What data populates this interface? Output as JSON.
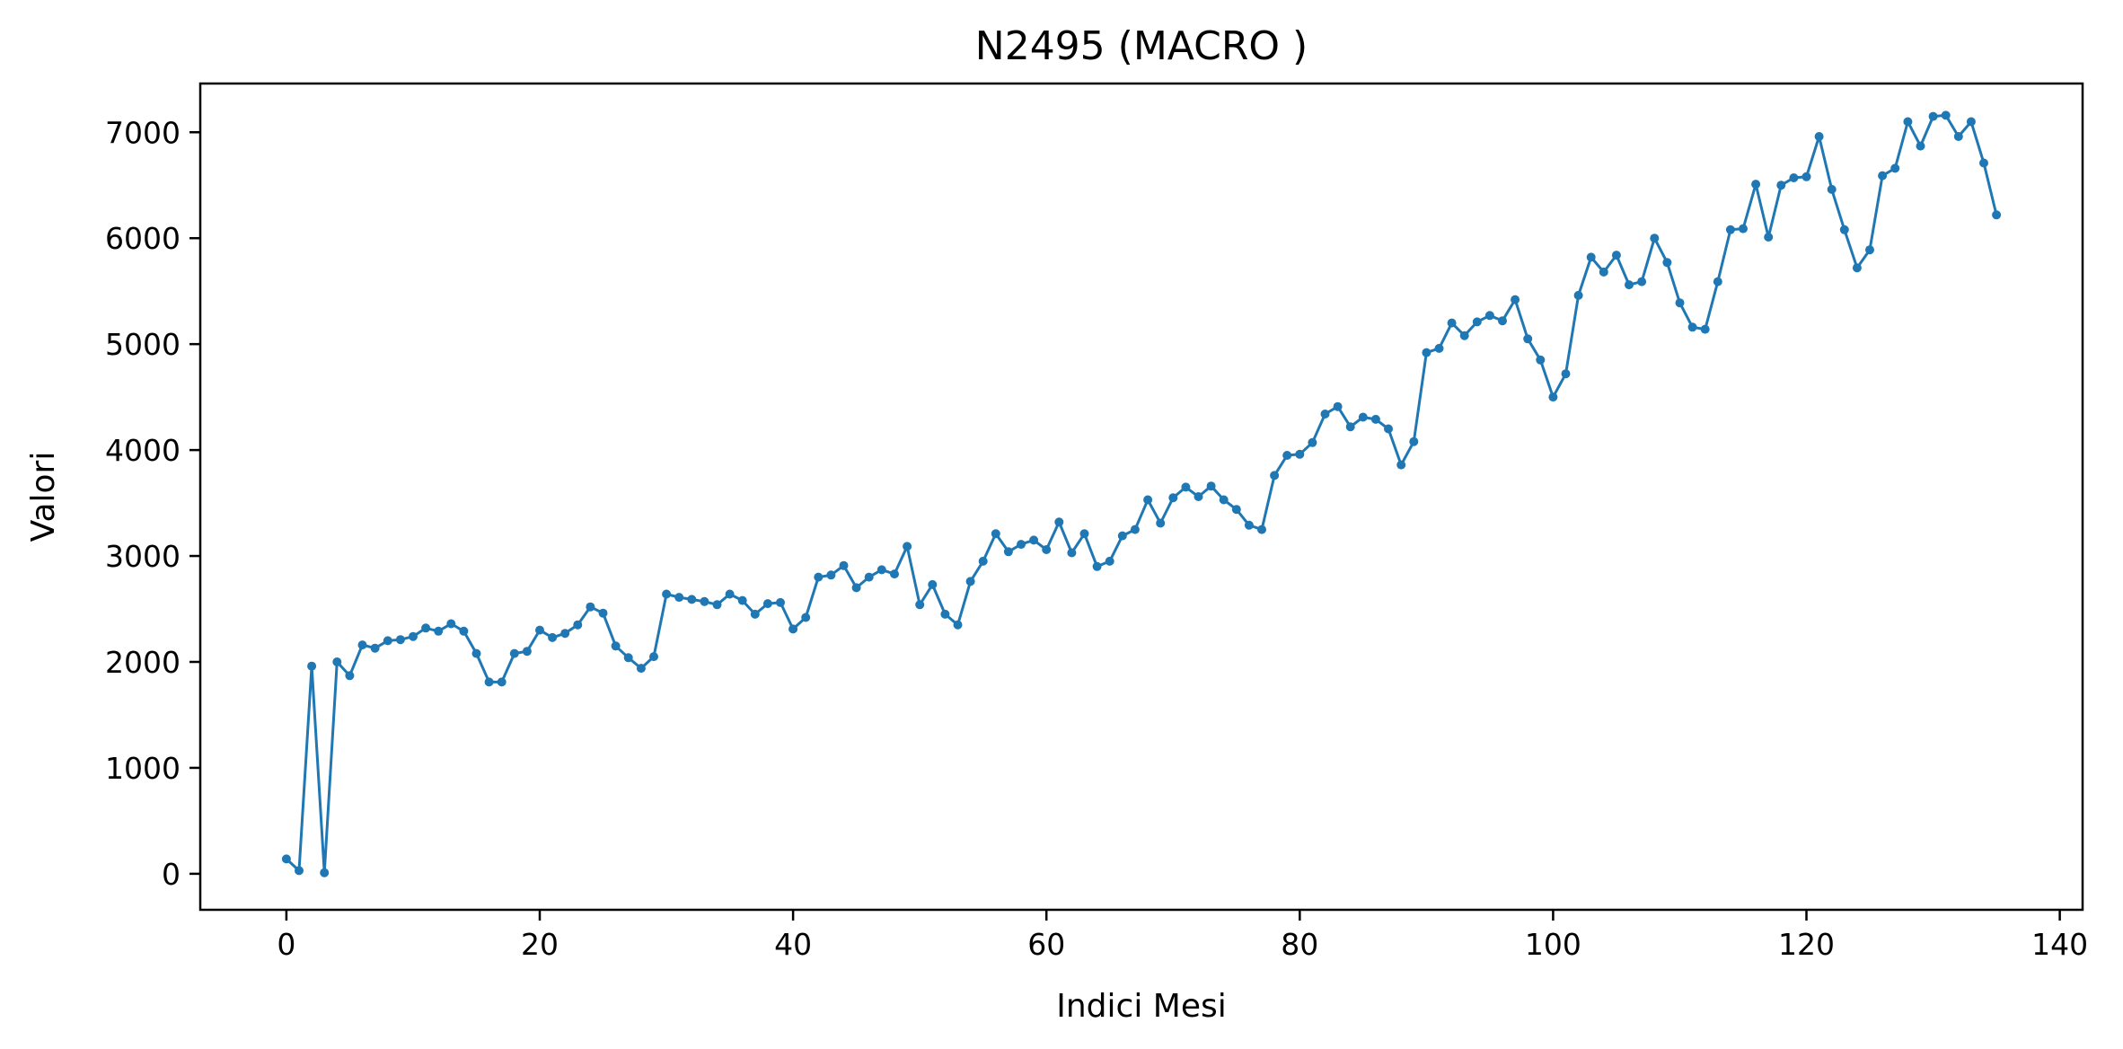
{
  "chart_data": {
    "type": "line",
    "title": "N2495 (MACRO        )",
    "xlabel": "Indici Mesi",
    "ylabel": "Valori",
    "xlim": [
      -6.8,
      141.8
    ],
    "ylim": [
      -340,
      7460
    ],
    "xticks": [
      0,
      20,
      40,
      60,
      80,
      100,
      120,
      140
    ],
    "yticks": [
      0,
      1000,
      2000,
      3000,
      4000,
      5000,
      6000,
      7000
    ],
    "grid": false,
    "legend": "none",
    "line_color": "#1f77b4",
    "marker": "circle",
    "series": [
      {
        "x": [
          0,
          1,
          2,
          3,
          4,
          5,
          6,
          7,
          8,
          9,
          10,
          11,
          12,
          13,
          14,
          15,
          16,
          17,
          18,
          19,
          20,
          21,
          22,
          23,
          24,
          25,
          26,
          27,
          28,
          29,
          30,
          31,
          32,
          33,
          34,
          35,
          36,
          37,
          38,
          39,
          40,
          41,
          42,
          43,
          44,
          45,
          46,
          47,
          48,
          49,
          50,
          51,
          52,
          53,
          54,
          55,
          56,
          57,
          58,
          59,
          60,
          61,
          62,
          63,
          64,
          65,
          66,
          67,
          68,
          69,
          70,
          71,
          72,
          73,
          74,
          75,
          76,
          77,
          78,
          79,
          80,
          81,
          82,
          83,
          84,
          85,
          86,
          87,
          88,
          89,
          90,
          91,
          92,
          93,
          94,
          95,
          96,
          97,
          98,
          99,
          100,
          101,
          102,
          103,
          104,
          105,
          106,
          107,
          108,
          109,
          110,
          111,
          112,
          113,
          114,
          115,
          116,
          117,
          118,
          119,
          120,
          121,
          122,
          123,
          124,
          125,
          126,
          127,
          128,
          129,
          130,
          131,
          132,
          133,
          134,
          135
        ],
        "values": [
          140,
          30,
          1960,
          10,
          2000,
          1870,
          2160,
          2130,
          2200,
          2210,
          2240,
          2320,
          2290,
          2360,
          2290,
          2080,
          1810,
          1810,
          2080,
          2100,
          2300,
          2230,
          2270,
          2350,
          2520,
          2460,
          2150,
          2040,
          1940,
          2050,
          2640,
          2610,
          2590,
          2570,
          2540,
          2640,
          2580,
          2450,
          2550,
          2560,
          2310,
          2420,
          2800,
          2820,
          2910,
          2700,
          2800,
          2870,
          2830,
          3090,
          2540,
          2730,
          2450,
          2350,
          2760,
          2950,
          3210,
          3040,
          3110,
          3150,
          3060,
          3320,
          3030,
          3210,
          2900,
          2950,
          3190,
          3250,
          3530,
          3310,
          3550,
          3650,
          3560,
          3660,
          3530,
          3440,
          3290,
          3250,
          3760,
          3950,
          3960,
          4070,
          4340,
          4410,
          4220,
          4310,
          4290,
          4200,
          3860,
          4080,
          4920,
          4960,
          5200,
          5080,
          5210,
          5270,
          5220,
          5420,
          5050,
          4850,
          4500,
          4720,
          5460,
          5820,
          5680,
          5840,
          5560,
          5590,
          6000,
          5770,
          5390,
          5160,
          5140,
          5590,
          6080,
          6090,
          6510,
          6010,
          6500,
          6570,
          6580,
          6960,
          6460,
          6080,
          5720,
          5890,
          6590,
          6660,
          7100,
          6870,
          7150,
          7160,
          6960,
          7100,
          6710,
          6220
        ]
      }
    ]
  }
}
